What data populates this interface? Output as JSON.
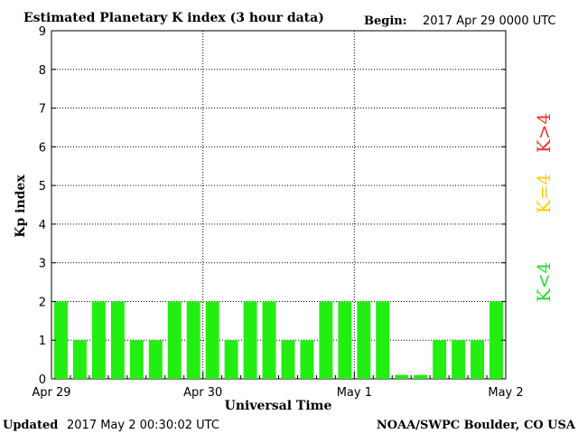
{
  "chart_data": {
    "type": "bar",
    "title": "Estimated Planetary K index (3 hour data)",
    "begin_label": "Begin:",
    "begin_value": "2017 Apr 29 0000 UTC",
    "xlabel": "Universal Time",
    "ylabel": "Kp index",
    "ylim": [
      0,
      9
    ],
    "yticks": [
      "0",
      "1",
      "2",
      "3",
      "4",
      "5",
      "6",
      "7",
      "8",
      "9"
    ],
    "x_ticks": [
      "Apr 29",
      "Apr 30",
      "May 1",
      "May 2"
    ],
    "values": [
      2,
      1,
      2,
      2,
      1,
      1,
      2,
      2,
      2,
      1,
      2,
      2,
      1,
      1,
      2,
      2,
      2,
      2,
      0.1,
      0.1,
      1,
      1,
      1,
      2
    ],
    "grid": true,
    "legend": [
      {
        "label": "K<4",
        "color": "#22dd22"
      },
      {
        "label": "K=4",
        "color": "#ffcc00"
      },
      {
        "label": "K>4",
        "color": "#ee3322"
      }
    ]
  },
  "footer": {
    "updated_label": "Updated",
    "updated_value": "2017 May  2 00:30:02 UTC",
    "source": "NOAA/SWPC Boulder, CO USA"
  },
  "colors": {
    "bar": "#22ee11"
  }
}
